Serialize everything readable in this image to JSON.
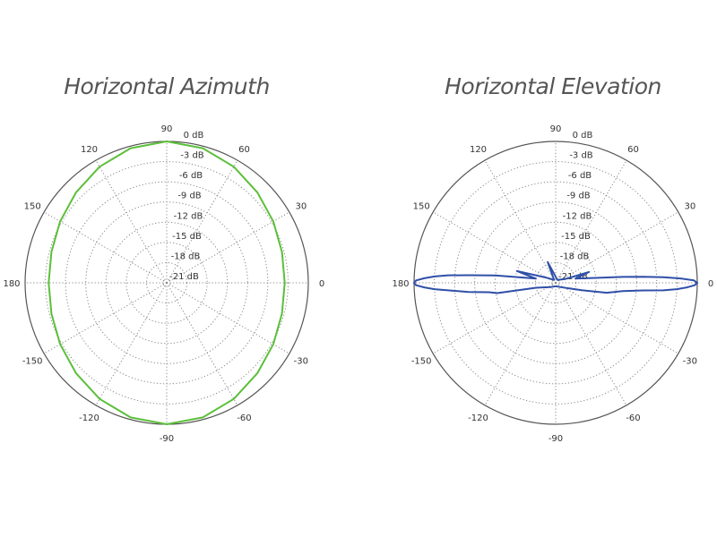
{
  "chart_data": [
    {
      "type": "polar-line",
      "title": "Horizontal Azimuth",
      "color": "#5cbf3a",
      "r_labels": [
        "0 dB",
        "-3 dB",
        "-6 dB",
        "-9 dB",
        "-12 dB",
        "-15 dB",
        "-18 dB",
        "-21 dB"
      ],
      "r_ticks": [
        0,
        -3,
        -6,
        -9,
        -12,
        -15,
        -18,
        -21
      ],
      "rlim": [
        -21,
        0
      ],
      "angle_labels": [
        "0",
        "30",
        "60",
        "90",
        "120",
        "150",
        "180",
        "-150",
        "-120",
        "-90",
        "-60",
        "-30"
      ],
      "angle_ticks": [
        0,
        30,
        60,
        90,
        120,
        150,
        180,
        210,
        240,
        270,
        300,
        330
      ],
      "points": [
        [
          0,
          -3.5
        ],
        [
          15,
          -3.3
        ],
        [
          30,
          -2.75
        ],
        [
          45,
          -2.0
        ],
        [
          60,
          -1.1
        ],
        [
          75,
          -0.3
        ],
        [
          90,
          0
        ],
        [
          105,
          -0.3
        ],
        [
          120,
          -1.1
        ],
        [
          135,
          -2.0
        ],
        [
          150,
          -2.75
        ],
        [
          165,
          -3.3
        ],
        [
          180,
          -3.5
        ],
        [
          195,
          -3.3
        ],
        [
          210,
          -2.75
        ],
        [
          225,
          -2.0
        ],
        [
          240,
          -1.1
        ],
        [
          255,
          -0.3
        ],
        [
          270,
          0
        ],
        [
          285,
          -0.3
        ],
        [
          300,
          -1.1
        ],
        [
          315,
          -2.0
        ],
        [
          330,
          -2.75
        ],
        [
          345,
          -3.3
        ]
      ]
    },
    {
      "type": "polar-line",
      "title": "Horizontal Elevation",
      "color": "#2f4fa8",
      "r_labels": [
        "0 dB",
        "-3 dB",
        "-6 dB",
        "-9 dB",
        "-12 dB",
        "-15 dB",
        "-18 dB",
        "-21 dB"
      ],
      "r_ticks": [
        0,
        -3,
        -6,
        -9,
        -12,
        -15,
        -18,
        -21
      ],
      "rlim": [
        -21,
        0
      ],
      "angle_labels": [
        "0",
        "30",
        "60",
        "90",
        "120",
        "150",
        "180",
        "-150",
        "-120",
        "-90",
        "-60",
        "-30"
      ],
      "angle_ticks": [
        0,
        30,
        60,
        90,
        120,
        150,
        180,
        210,
        240,
        270,
        300,
        330
      ],
      "points": [
        [
          0,
          0
        ],
        [
          1,
          -0.5
        ],
        [
          2,
          -2.5
        ],
        [
          3,
          -5
        ],
        [
          4,
          -8
        ],
        [
          5,
          -11
        ],
        [
          7,
          -15
        ],
        [
          12,
          -18
        ],
        [
          18,
          -15.8
        ],
        [
          22,
          -19.5
        ],
        [
          60,
          -20.5
        ],
        [
          111,
          -17.7
        ],
        [
          118,
          -20.5
        ],
        [
          150,
          -19.5
        ],
        [
          163,
          -15
        ],
        [
          168,
          -18
        ],
        [
          173,
          -12
        ],
        [
          175,
          -8
        ],
        [
          176,
          -5
        ],
        [
          177,
          -3
        ],
        [
          178,
          -1.5
        ],
        [
          179,
          -0.3
        ],
        [
          180,
          0
        ],
        [
          181,
          -0.3
        ],
        [
          182,
          -1.5
        ],
        [
          183,
          -3
        ],
        [
          184,
          -5
        ],
        [
          186,
          -8
        ],
        [
          188,
          -11
        ],
        [
          190,
          -12.2
        ],
        [
          194,
          -18
        ],
        [
          220,
          -20
        ],
        [
          270,
          -20.5
        ],
        [
          320,
          -20
        ],
        [
          344,
          -17
        ],
        [
          349,
          -13.3
        ],
        [
          353,
          -11
        ],
        [
          355,
          -8
        ],
        [
          356,
          -5
        ],
        [
          357,
          -3
        ],
        [
          358,
          -1.5
        ],
        [
          359,
          -0.4
        ]
      ]
    }
  ]
}
